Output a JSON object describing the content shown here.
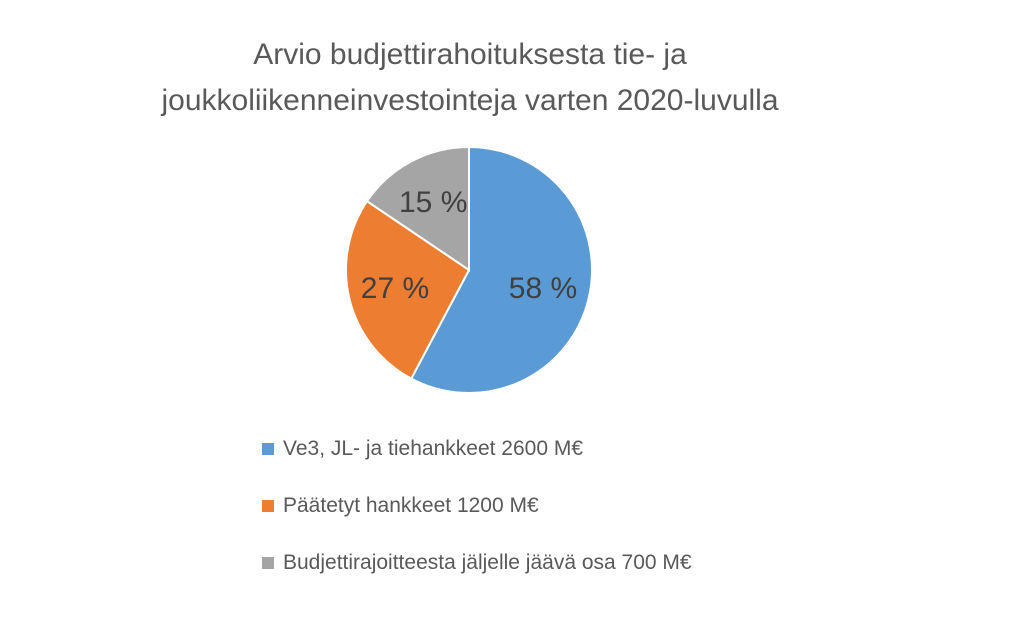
{
  "chart_data": {
    "type": "pie",
    "title_lines": [
      "Arvio budjettirahoituksesta tie- ja",
      "joukkoliikenneinvestointeja varten 2020-luvulla"
    ],
    "categories": [
      "Ve3, JL- ja tiehankkeet 2600 M€",
      "Päätetyt hankkeet 1200 M€",
      "Budjettirajoitteesta jäljelle jäävä osa 700 M€"
    ],
    "values": [
      2600,
      1200,
      700
    ],
    "data_labels": [
      "58 %",
      "27 %",
      "15 %"
    ],
    "colors": [
      "#5B9BD5",
      "#ED7D31",
      "#A5A5A5"
    ],
    "legend_position": "bottom",
    "start_angle": "12 o'clock, clockwise"
  }
}
